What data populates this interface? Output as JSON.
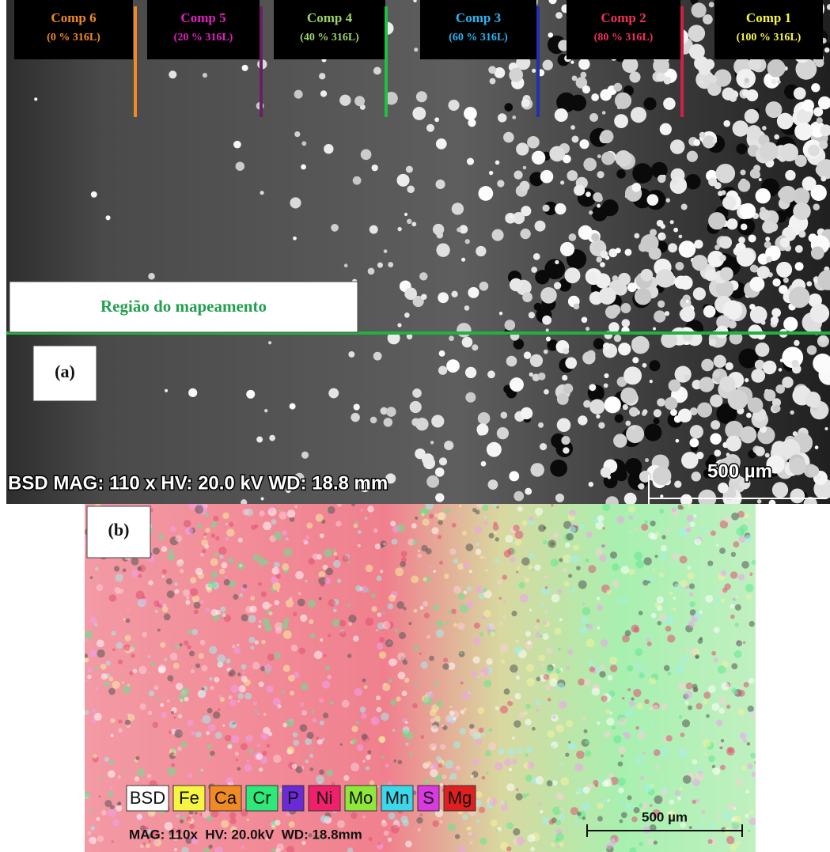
{
  "panel_a": {
    "label": "(a)",
    "compositions": [
      {
        "name": "Comp 6",
        "detail": "(0 % 316L)",
        "color": "#f08a24",
        "line_color": "#f08a24"
      },
      {
        "name": "Comp 5",
        "detail": "(20 % 316L)",
        "color": "#e020c0",
        "line_color": "#6a2060"
      },
      {
        "name": "Comp 4",
        "detail": "(40 % 316L)",
        "color": "#9dd36a",
        "line_color": "#22c040"
      },
      {
        "name": "Comp 3",
        "detail": "(60 % 316L)",
        "color": "#2ab4f0",
        "line_color": "#2030b0"
      },
      {
        "name": "Comp 2",
        "detail": "(80 % 316L)",
        "color": "#f0305a",
        "line_color": "#d0204a"
      },
      {
        "name": "Comp 1",
        "detail": "(100 % 316L)",
        "color": "#f5f542",
        "line_color": null
      }
    ],
    "region_label": "Região do mapeamento",
    "info": "BSD MAG: 110 x HV: 20.0 kV WD: 18.8 mm",
    "scale_bar": "500 µm"
  },
  "panel_b": {
    "label": "(b)",
    "legend": [
      {
        "name": "BSD",
        "color": "#ffffff"
      },
      {
        "name": "Fe",
        "color": "#f5f542"
      },
      {
        "name": "Ca",
        "color": "#f08a24"
      },
      {
        "name": "Cr",
        "color": "#2ee87a"
      },
      {
        "name": "P",
        "color": "#6a2ad8"
      },
      {
        "name": "Ni",
        "color": "#f0206a"
      },
      {
        "name": "Mo",
        "color": "#8ee83a"
      },
      {
        "name": "Mn",
        "color": "#3ad8e8"
      },
      {
        "name": "S",
        "color": "#d83ae0"
      },
      {
        "name": "Mg",
        "color": "#e02020"
      }
    ],
    "info": "MAG: 110x  HV: 20.0kV  WD: 18.8mm",
    "scale_bar": "500 µm"
  }
}
